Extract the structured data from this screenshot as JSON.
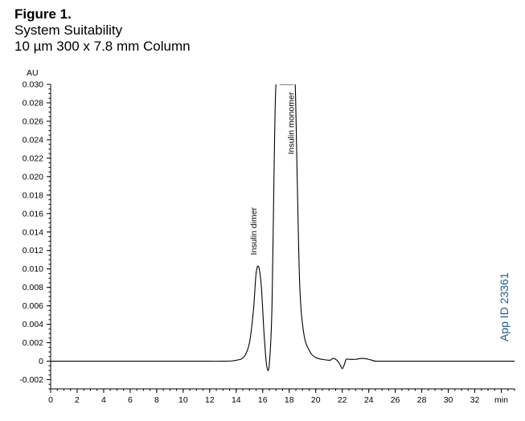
{
  "figure": {
    "label": "Figure 1.",
    "subtitle_1": "System Suitability",
    "subtitle_2": "10 µm 300 x 7.8 mm Column",
    "app_id": "App ID 23361"
  },
  "colors": {
    "trace": "#000000",
    "app_id": "#1f5a8a"
  },
  "chart_data": {
    "type": "line",
    "ylabel": "AU",
    "xlabel": "min",
    "xlim": [
      0,
      35
    ],
    "ylim": [
      -0.003,
      0.03
    ],
    "x_ticks": [
      "0",
      "2",
      "4",
      "6",
      "8",
      "10",
      "12",
      "14",
      "16",
      "18",
      "20",
      "22",
      "24",
      "26",
      "28",
      "30",
      "32",
      "min"
    ],
    "y_ticks": [
      "0.030",
      "0.028",
      "0.026",
      "0.024",
      "0.022",
      "0.020",
      "0.018",
      "0.016",
      "0.014",
      "0.012",
      "0.010",
      "0.008",
      "0.006",
      "0.004",
      "0.002",
      "0",
      "-0.002"
    ],
    "series": [
      {
        "x": [
          0,
          10,
          13,
          14,
          14.6,
          15,
          15.3,
          15.5,
          15.7,
          15.9,
          16.1,
          16.3,
          16.5,
          16.7,
          16.85,
          17.0,
          17.3,
          17.6,
          18.0,
          18.3,
          18.45,
          18.6,
          18.8,
          19.1,
          19.5,
          20,
          21,
          21.3,
          21.6,
          21.8,
          22.0,
          22.15,
          22.3,
          22.5,
          23,
          23.5,
          24,
          24.5,
          25,
          30,
          35
        ],
        "y": [
          0,
          0,
          0,
          0.0001,
          0.0005,
          0.002,
          0.0055,
          0.0095,
          0.0102,
          0.008,
          0.003,
          -0.0005,
          -0.0003,
          0.006,
          0.02,
          0.03,
          0.03,
          0.03,
          0.03,
          0.03,
          0.03,
          0.02,
          0.008,
          0.003,
          0.0012,
          0.0004,
          0.0001,
          0.0003,
          0.0001,
          -0.0003,
          -0.0008,
          -0.0004,
          0.0002,
          0.0002,
          0.0002,
          0.0003,
          0.0002,
          0.0,
          0,
          0,
          0
        ]
      }
    ],
    "annotations": [
      {
        "text": "Insulin dimer",
        "x": 15.6
      },
      {
        "text": "Insulin monomer",
        "x": 18.6
      }
    ]
  }
}
